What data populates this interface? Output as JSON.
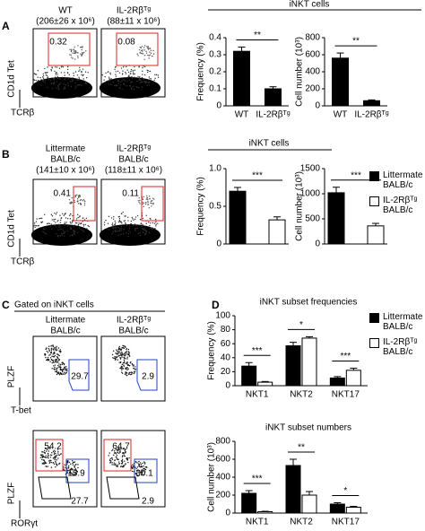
{
  "panel_labels": [
    "A",
    "B",
    "C",
    "D"
  ],
  "headers": {
    "a": "iNKT cells",
    "b": "iNKT cells"
  },
  "flow": {
    "a": {
      "titles": [
        [
          "WT",
          "(206±26 x 10⁶)"
        ],
        [
          "IL-2Rβᵀᵍ",
          "(88±11 x 10⁶)"
        ]
      ],
      "gates": [
        0.32,
        0.08
      ],
      "y_label": "CD1d Tet",
      "x_label": "TCRβ"
    },
    "b": {
      "titles": [
        [
          "Littermate",
          "BALB/c",
          "(141±10 x 10⁶)"
        ],
        [
          "IL-2Rβᵀᵍ",
          "BALB/c",
          "(118±11 x 10⁶)"
        ]
      ],
      "gates": [
        0.41,
        0.11
      ],
      "y_label": "CD1d Tet",
      "x_label": "TCRβ"
    },
    "c": {
      "header": "Gated on iNKT cells",
      "titles": [
        [
          "Littermate",
          "BALB/c"
        ],
        [
          "IL-2Rβᵀᵍ",
          "BALB/c"
        ]
      ],
      "top": {
        "gates": [
          29.7,
          2.9
        ],
        "y_label": "PLZF",
        "x_label": "T-bet"
      },
      "bottom": {
        "gates": [
          [
            54.2,
            15.9,
            27.7
          ],
          [
            64.7,
            30.1,
            2.9
          ]
        ],
        "y_label": "PLZF",
        "x_label": "RORγt"
      }
    }
  },
  "chart_data": [
    {
      "type": "bar",
      "y_label": "Frequency (%)",
      "categories": [
        "WT",
        "IL-2Rβᵀᵍ"
      ],
      "series": [
        {
          "color": "#000000",
          "values": [
            0.32,
            0.1
          ],
          "errors": [
            0.025,
            0.012
          ]
        }
      ],
      "ylim": [
        0,
        0.4
      ],
      "yticks": [
        0,
        0.1,
        0.2,
        0.3,
        0.4
      ],
      "significance": [
        "**"
      ]
    },
    {
      "type": "bar",
      "y_label": "Cell number (10³)",
      "categories": [
        "WT",
        "IL-2Rβᵀᵍ"
      ],
      "series": [
        {
          "color": "#000000",
          "values": [
            560,
            60
          ],
          "errors": [
            60,
            10
          ]
        }
      ],
      "ylim": [
        0,
        800
      ],
      "yticks": [
        0,
        200,
        400,
        600,
        800
      ],
      "significance": [
        "**"
      ]
    },
    {
      "type": "bar",
      "y_label": "Frequency (%)",
      "series": [
        {
          "name": "Littermate BALB/c",
          "color": "#000000",
          "values": [
            0.7
          ],
          "errors": [
            0.05
          ]
        },
        {
          "name": "IL-2Rβᵀᵍ BALB/c",
          "color": "#ffffff",
          "values": [
            0.32
          ],
          "errors": [
            0.04
          ]
        }
      ],
      "ylim": [
        0,
        1
      ],
      "yticks": [
        0,
        0.5,
        {
          "value": 1,
          "label": "1.0"
        }
      ],
      "significance": [
        "***"
      ],
      "legend": true
    },
    {
      "type": "bar",
      "y_label": "Cell number (10³)",
      "series": [
        {
          "color": "#000000",
          "values": [
            1020
          ],
          "errors": [
            110
          ]
        },
        {
          "color": "#ffffff",
          "values": [
            360
          ],
          "errors": [
            50
          ]
        }
      ],
      "ylim": [
        0,
        1500
      ],
      "yticks": [
        0,
        500,
        1000,
        1500
      ],
      "significance": [
        "***"
      ]
    },
    {
      "type": "bar",
      "title": "iNKT subset frequencies",
      "y_label": "Frequency (%)",
      "categories": [
        "NKT1",
        "NKT2",
        "NKT17"
      ],
      "series": [
        {
          "name": "Littermate BALB/c",
          "color": "#000000",
          "values": [
            28,
            57,
            11
          ],
          "errors": [
            5,
            5,
            2
          ]
        },
        {
          "name": "IL-2Rβᵀᵍ BALB/c",
          "color": "#ffffff",
          "values": [
            5,
            68,
            22
          ],
          "errors": [
            1,
            2,
            3
          ]
        }
      ],
      "ylim": [
        0,
        100
      ],
      "yticks": [
        0,
        20,
        40,
        60,
        80,
        100
      ],
      "significance": [
        "***",
        "*",
        "***"
      ],
      "legend": true
    },
    {
      "type": "bar",
      "title": "iNKT subset numbers",
      "y_label": "Cell number (10³)",
      "categories": [
        "NKT1",
        "NKT2",
        "NKT17"
      ],
      "series": [
        {
          "color": "#000000",
          "values": [
            220,
            530,
            100
          ],
          "errors": [
            30,
            70,
            15
          ]
        },
        {
          "color": "#ffffff",
          "values": [
            15,
            200,
            65
          ],
          "errors": [
            5,
            40,
            10
          ]
        }
      ],
      "ylim": [
        0,
        800
      ],
      "yticks": [
        0,
        200,
        400,
        600,
        800
      ],
      "significance": [
        "***",
        "**",
        "*"
      ]
    }
  ]
}
